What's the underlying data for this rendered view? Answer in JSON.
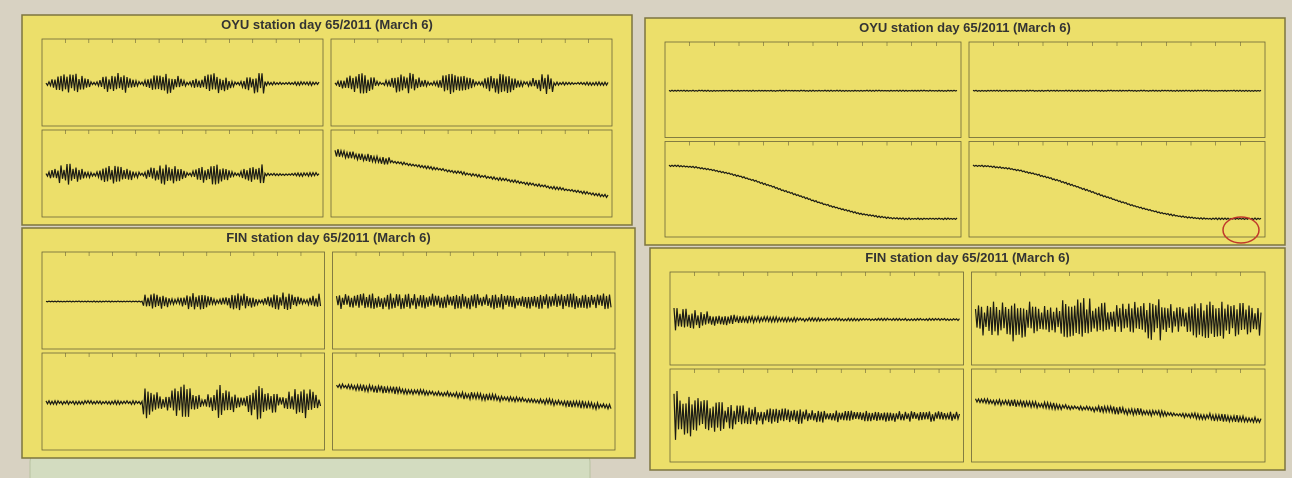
{
  "panels": [
    {
      "title": "OYU station   day 65/2011 (March 6)"
    },
    {
      "title": "OYU station   day 65/2011 (March 6)"
    },
    {
      "title": "FIN station   day 65/2011 (March 6)"
    },
    {
      "title": "FIN station   day 65/2011 (March 6)"
    }
  ]
}
